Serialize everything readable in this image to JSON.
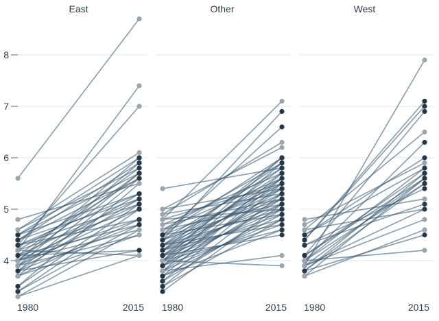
{
  "chart_data": {
    "type": "line",
    "subtype": "slopegraph",
    "title": "",
    "xlabel": "",
    "ylabel": "",
    "x_categories": [
      "1980",
      "2015"
    ],
    "yticks": [
      4,
      5,
      6,
      7,
      8
    ],
    "ylim": [
      3.2,
      8.8
    ],
    "grid": true,
    "legend": false,
    "panels": [
      {
        "title": "East",
        "lines": [
          [
            5.6,
            8.7,
            "l"
          ],
          [
            4.2,
            7.4,
            "l"
          ],
          [
            4.3,
            7.0,
            "l"
          ],
          [
            4.6,
            6.1,
            "l"
          ],
          [
            4.5,
            6.0,
            "d"
          ],
          [
            4.0,
            6.0,
            "d"
          ],
          [
            4.4,
            5.9,
            "d"
          ],
          [
            3.9,
            5.9,
            "d"
          ],
          [
            4.6,
            5.8,
            "l"
          ],
          [
            4.1,
            5.8,
            "d"
          ],
          [
            4.5,
            5.7,
            "d"
          ],
          [
            4.0,
            5.7,
            "d"
          ],
          [
            3.8,
            5.7,
            "d"
          ],
          [
            4.4,
            5.6,
            "d"
          ],
          [
            4.2,
            5.6,
            "d"
          ],
          [
            3.7,
            5.6,
            "d"
          ],
          [
            4.8,
            5.5,
            "l"
          ],
          [
            3.5,
            5.5,
            "l"
          ],
          [
            4.5,
            5.3,
            "d"
          ],
          [
            4.3,
            5.3,
            "d"
          ],
          [
            3.9,
            5.3,
            "d"
          ],
          [
            4.4,
            5.2,
            "d"
          ],
          [
            4.1,
            5.2,
            "d"
          ],
          [
            3.8,
            5.2,
            "d"
          ],
          [
            4.3,
            5.1,
            "d"
          ],
          [
            4.0,
            5.1,
            "d"
          ],
          [
            3.5,
            5.1,
            "d"
          ],
          [
            4.2,
            5.0,
            "d"
          ],
          [
            3.9,
            5.0,
            "d"
          ],
          [
            3.4,
            5.0,
            "d"
          ],
          [
            4.3,
            4.8,
            "d"
          ],
          [
            4.0,
            4.8,
            "d"
          ],
          [
            3.7,
            4.8,
            "d"
          ],
          [
            4.1,
            4.7,
            "d"
          ],
          [
            3.8,
            4.7,
            "d"
          ],
          [
            3.4,
            4.7,
            "d"
          ],
          [
            4.0,
            4.6,
            "l"
          ],
          [
            3.3,
            4.6,
            "l"
          ],
          [
            3.9,
            4.5,
            "l"
          ],
          [
            3.7,
            4.5,
            "l"
          ],
          [
            4.1,
            4.2,
            "d"
          ],
          [
            3.8,
            4.2,
            "d"
          ],
          [
            4.2,
            4.1,
            "l"
          ],
          [
            3.3,
            4.1,
            "l"
          ]
        ]
      },
      {
        "title": "Other",
        "lines": [
          [
            4.8,
            7.1,
            "l"
          ],
          [
            4.4,
            6.9,
            "d"
          ],
          [
            4.5,
            6.6,
            "d"
          ],
          [
            4.9,
            6.3,
            "l"
          ],
          [
            5.0,
            6.2,
            "l"
          ],
          [
            4.5,
            6.0,
            "d"
          ],
          [
            4.2,
            6.0,
            "d"
          ],
          [
            4.0,
            6.0,
            "d"
          ],
          [
            4.6,
            5.9,
            "l"
          ],
          [
            4.3,
            5.9,
            "d"
          ],
          [
            3.9,
            5.9,
            "d"
          ],
          [
            5.4,
            5.8,
            "l"
          ],
          [
            4.4,
            5.8,
            "d"
          ],
          [
            4.1,
            5.8,
            "d"
          ],
          [
            4.7,
            5.7,
            "l"
          ],
          [
            4.2,
            5.7,
            "d"
          ],
          [
            3.8,
            5.7,
            "d"
          ],
          [
            4.6,
            5.6,
            "l"
          ],
          [
            4.3,
            5.6,
            "d"
          ],
          [
            4.0,
            5.6,
            "d"
          ],
          [
            3.7,
            5.6,
            "d"
          ],
          [
            4.8,
            5.5,
            "l"
          ],
          [
            4.4,
            5.5,
            "d"
          ],
          [
            4.1,
            5.5,
            "d"
          ],
          [
            3.6,
            5.5,
            "d"
          ],
          [
            5.0,
            5.4,
            "l"
          ],
          [
            4.5,
            5.4,
            "d"
          ],
          [
            4.2,
            5.4,
            "d"
          ],
          [
            3.9,
            5.4,
            "d"
          ],
          [
            4.9,
            5.3,
            "l"
          ],
          [
            4.3,
            5.3,
            "d"
          ],
          [
            4.0,
            5.3,
            "d"
          ],
          [
            3.5,
            5.3,
            "d"
          ],
          [
            4.7,
            5.2,
            "l"
          ],
          [
            4.4,
            5.2,
            "d"
          ],
          [
            4.1,
            5.2,
            "d"
          ],
          [
            3.8,
            5.2,
            "d"
          ],
          [
            4.6,
            5.1,
            "l"
          ],
          [
            4.2,
            5.1,
            "d"
          ],
          [
            3.9,
            5.1,
            "d"
          ],
          [
            3.4,
            5.1,
            "d"
          ],
          [
            4.8,
            5.0,
            "l"
          ],
          [
            4.3,
            5.0,
            "d"
          ],
          [
            4.0,
            5.0,
            "d"
          ],
          [
            3.6,
            5.0,
            "d"
          ],
          [
            4.5,
            4.9,
            "d"
          ],
          [
            4.1,
            4.9,
            "d"
          ],
          [
            3.7,
            4.9,
            "d"
          ],
          [
            4.2,
            4.8,
            "d"
          ],
          [
            3.8,
            4.8,
            "d"
          ],
          [
            3.5,
            4.8,
            "d"
          ],
          [
            4.3,
            4.7,
            "d"
          ],
          [
            3.9,
            4.7,
            "d"
          ],
          [
            4.0,
            4.6,
            "d"
          ],
          [
            3.7,
            4.6,
            "d"
          ],
          [
            4.1,
            4.5,
            "d"
          ],
          [
            3.8,
            4.1,
            "l"
          ],
          [
            4.0,
            3.9,
            "l"
          ]
        ]
      },
      {
        "title": "West",
        "lines": [
          [
            3.9,
            7.9,
            "l"
          ],
          [
            4.4,
            7.1,
            "d"
          ],
          [
            4.4,
            7.0,
            "d"
          ],
          [
            4.1,
            6.9,
            "d"
          ],
          [
            4.6,
            6.5,
            "l"
          ],
          [
            4.0,
            6.3,
            "d"
          ],
          [
            4.5,
            6.0,
            "d"
          ],
          [
            4.7,
            5.9,
            "l"
          ],
          [
            4.5,
            5.8,
            "d"
          ],
          [
            4.0,
            5.8,
            "d"
          ],
          [
            4.1,
            5.7,
            "d"
          ],
          [
            3.8,
            5.7,
            "d"
          ],
          [
            3.9,
            5.6,
            "d"
          ],
          [
            4.1,
            5.6,
            "d"
          ],
          [
            3.7,
            5.6,
            "d"
          ],
          [
            4.0,
            5.5,
            "d"
          ],
          [
            3.8,
            5.5,
            "d"
          ],
          [
            4.3,
            5.4,
            "d"
          ],
          [
            4.8,
            5.2,
            "l"
          ],
          [
            4.3,
            5.1,
            "d"
          ],
          [
            4.6,
            5.0,
            "l"
          ],
          [
            3.9,
            5.0,
            "d"
          ],
          [
            3.9,
            4.8,
            "l"
          ],
          [
            3.7,
            4.6,
            "l"
          ],
          [
            3.8,
            4.5,
            "d"
          ],
          [
            4.0,
            4.2,
            "l"
          ]
        ]
      }
    ],
    "colors": {
      "dot_dark": "#24384a",
      "dot_light": "#9aa5ae",
      "line": "#33536e",
      "grid": "#dfe3e6",
      "tick": "#6f7d8a",
      "text": "#2f3e4d",
      "background": "#ffffff"
    }
  }
}
